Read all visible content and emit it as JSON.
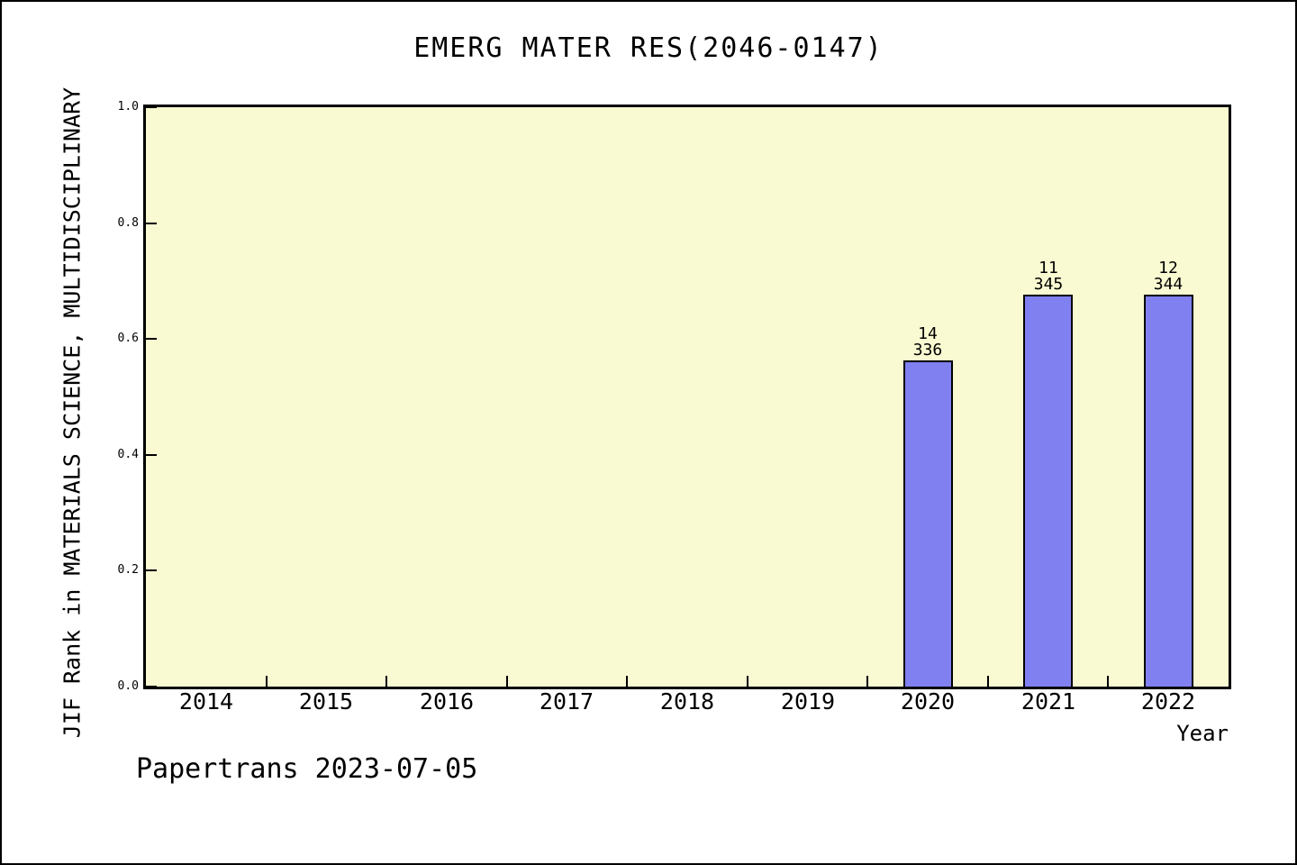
{
  "title": "EMERG MATER RES(2046-0147)",
  "footer": "Papertrans 2023-07-05",
  "chart_data": {
    "type": "bar",
    "title": "EMERG MATER RES(2046-0147)",
    "xlabel": "Year",
    "ylabel": "JIF Rank in MATERIALS SCIENCE, MULTIDISCIPLINARY",
    "categories": [
      "2014",
      "2015",
      "2016",
      "2017",
      "2018",
      "2019",
      "2020",
      "2021",
      "2022"
    ],
    "values": [
      null,
      null,
      null,
      null,
      null,
      null,
      0.563,
      0.677,
      0.677
    ],
    "y_ticks": [
      "0.0",
      "0.2",
      "0.4",
      "0.6",
      "0.8",
      "1.0"
    ],
    "ylim": [
      0,
      1
    ],
    "grid": false,
    "legend": null,
    "bars": [
      {
        "category": "2020",
        "value": 0.563,
        "rank_label": "14",
        "total_label": "336"
      },
      {
        "category": "2021",
        "value": 0.677,
        "rank_label": "11",
        "total_label": "345"
      },
      {
        "category": "2022",
        "value": 0.677,
        "rank_label": "12",
        "total_label": "344"
      }
    ],
    "colors": {
      "bar_fill": "#8080f0",
      "bar_edge": "#000000",
      "plot_background": "#fafad2",
      "figure_background": "#ffffff",
      "text": "#000000"
    }
  }
}
